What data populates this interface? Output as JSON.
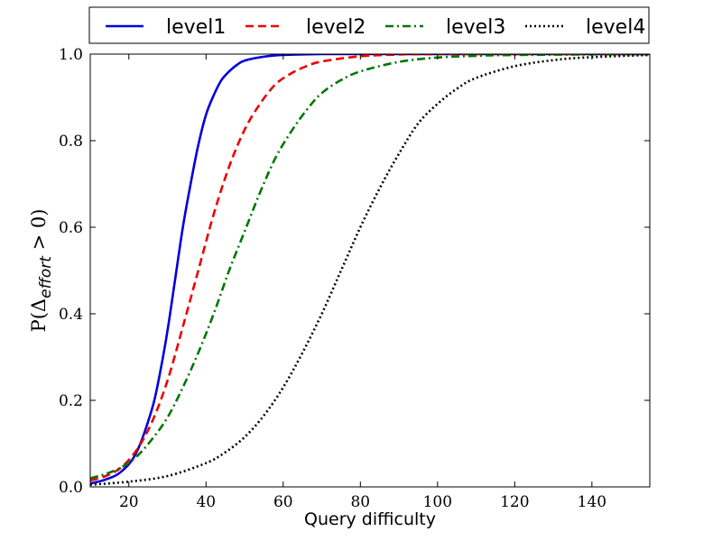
{
  "chart_data": {
    "type": "line",
    "title": "",
    "xlabel": "Query difficulty",
    "ylabel": {
      "prefix": "P(Δ",
      "subscript": "effort",
      "suffix": " > 0)"
    },
    "xlim": [
      10,
      155
    ],
    "ylim": [
      0,
      1
    ],
    "xticks": [
      20,
      40,
      60,
      80,
      100,
      120,
      140
    ],
    "yticks": [
      0.0,
      0.2,
      0.4,
      0.6,
      0.8,
      1.0
    ],
    "ytick_labels": [
      "0.0",
      "0.2",
      "0.4",
      "0.6",
      "0.8",
      "1.0"
    ],
    "grid": false,
    "legend_position": "top",
    "series": [
      {
        "name": "level1",
        "color": "#0000dd",
        "style": "solid",
        "x": [
          10,
          14,
          18,
          22,
          26,
          28,
          30,
          32,
          34,
          36,
          38,
          40,
          42,
          44,
          46,
          48,
          50,
          55,
          60,
          70,
          80,
          100,
          155
        ],
        "y": [
          0.008,
          0.017,
          0.035,
          0.08,
          0.18,
          0.26,
          0.36,
          0.48,
          0.6,
          0.7,
          0.79,
          0.86,
          0.905,
          0.94,
          0.96,
          0.975,
          0.985,
          0.994,
          0.998,
          1.0,
          1.0,
          1.0,
          1.0
        ]
      },
      {
        "name": "level2",
        "color": "#ee0000",
        "style": "dashed",
        "x": [
          10,
          14,
          18,
          22,
          26,
          30,
          34,
          38,
          42,
          46,
          50,
          54,
          58,
          62,
          66,
          70,
          80,
          90,
          100,
          155
        ],
        "y": [
          0.015,
          0.025,
          0.045,
          0.085,
          0.15,
          0.245,
          0.37,
          0.5,
          0.63,
          0.74,
          0.825,
          0.885,
          0.93,
          0.955,
          0.972,
          0.983,
          0.995,
          0.999,
          1.0,
          1.0
        ]
      },
      {
        "name": "level3",
        "color": "#007700",
        "style": "dashdot",
        "x": [
          10,
          14,
          18,
          22,
          26,
          30,
          34,
          38,
          42,
          46,
          50,
          54,
          58,
          62,
          66,
          70,
          75,
          80,
          90,
          100,
          110,
          120,
          155
        ],
        "y": [
          0.02,
          0.03,
          0.045,
          0.07,
          0.11,
          0.16,
          0.23,
          0.31,
          0.4,
          0.5,
          0.59,
          0.68,
          0.76,
          0.82,
          0.87,
          0.91,
          0.94,
          0.96,
          0.982,
          0.992,
          0.996,
          0.998,
          1.0
        ]
      },
      {
        "name": "level4",
        "color": "#000000",
        "style": "dotted",
        "x": [
          10,
          20,
          30,
          40,
          45,
          50,
          55,
          60,
          65,
          70,
          75,
          80,
          85,
          90,
          95,
          100,
          105,
          110,
          120,
          130,
          140,
          155
        ],
        "y": [
          0.005,
          0.012,
          0.025,
          0.055,
          0.08,
          0.115,
          0.165,
          0.23,
          0.31,
          0.4,
          0.5,
          0.6,
          0.69,
          0.77,
          0.84,
          0.885,
          0.92,
          0.945,
          0.972,
          0.986,
          0.993,
          0.998
        ]
      }
    ]
  }
}
